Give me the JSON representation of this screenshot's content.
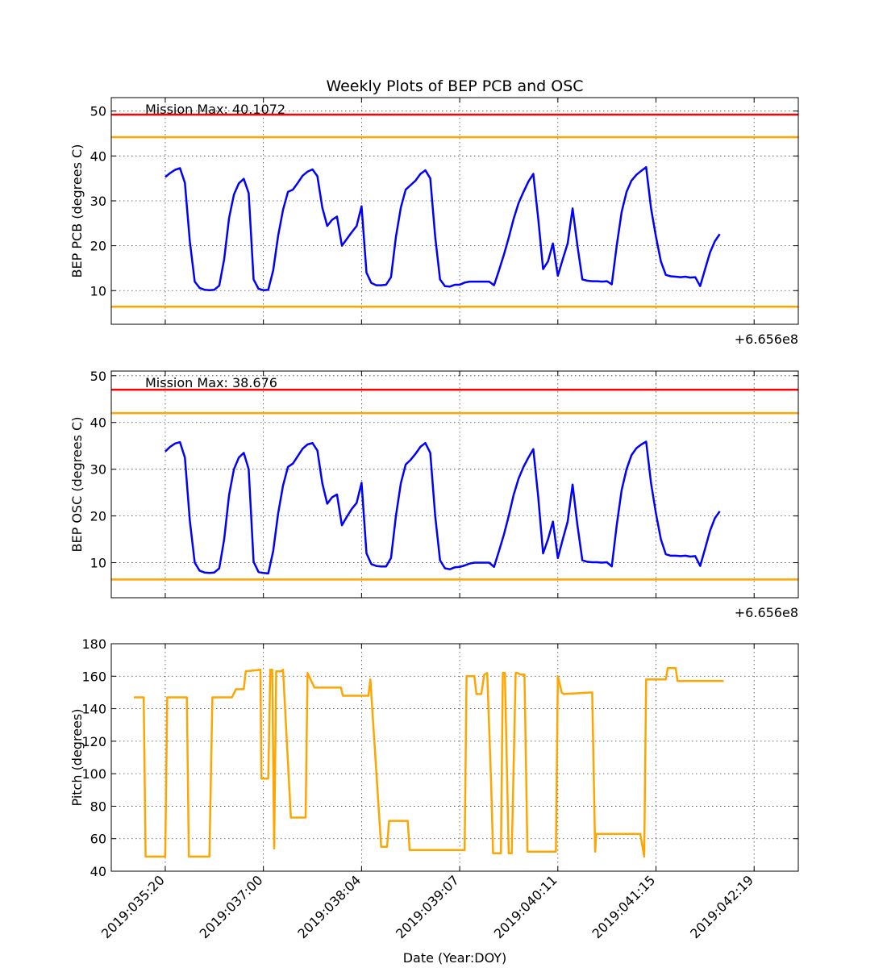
{
  "figure": {
    "title": "Weekly Plots of BEP PCB and OSC",
    "xlabel": "Date (Year:DOY)"
  },
  "colors": {
    "data": "#0000ff",
    "yellow_limit": "#ffa500",
    "red_limit": "#ff0000",
    "pitch": "#ffa500"
  },
  "chart_data": [
    {
      "type": "line",
      "ylabel": "BEP PCB (degrees C)",
      "x_offset_label": "+6.656e8",
      "annotation": "Mission Max: 40.1072",
      "xlim": [
        -0.55,
        6.45
      ],
      "ylim": [
        2.5,
        53
      ],
      "yticks": [
        10,
        20,
        30,
        40,
        50
      ],
      "xticks": [
        0,
        1,
        2,
        3,
        4,
        5,
        6
      ],
      "limits": [
        {
          "value": 49.2,
          "color": "red"
        },
        {
          "value": 44.2,
          "color": "yellow"
        },
        {
          "value": 6.4,
          "color": "yellow"
        }
      ],
      "series": [
        {
          "x": [
            0.0,
            0.05,
            0.1,
            0.15,
            0.2,
            0.25,
            0.3,
            0.35,
            0.4,
            0.45,
            0.5,
            0.55,
            0.6,
            0.65,
            0.7,
            0.75,
            0.8,
            0.85,
            0.9,
            0.95,
            1.0,
            1.05,
            1.1,
            1.15,
            1.2,
            1.25,
            1.3,
            1.35,
            1.4,
            1.45,
            1.5,
            1.55,
            1.6,
            1.65,
            1.7,
            1.75,
            1.8,
            1.85,
            1.9,
            1.95,
            2.0,
            2.05,
            2.1,
            2.15,
            2.2,
            2.25,
            2.3,
            2.35,
            2.4,
            2.45,
            2.5,
            2.55,
            2.6,
            2.65,
            2.7,
            2.75,
            2.8,
            2.85,
            2.9,
            2.95,
            3.0,
            3.05,
            3.1,
            3.15,
            3.2,
            3.25,
            3.3,
            3.35,
            3.4,
            3.45,
            3.5,
            3.55,
            3.6,
            3.65,
            3.7,
            3.75,
            3.8,
            3.85,
            3.9,
            3.95,
            4.0,
            4.05,
            4.1,
            4.15,
            4.2,
            4.25,
            4.3,
            4.35,
            4.4,
            4.45,
            4.5,
            4.55,
            4.6,
            4.65,
            4.7,
            4.75,
            4.8,
            4.85,
            4.9,
            4.95,
            5.0,
            5.05,
            5.1,
            5.15,
            5.2,
            5.25,
            5.3,
            5.35,
            5.4,
            5.45,
            5.5,
            5.55,
            5.6,
            5.65
          ],
          "y": [
            35.3,
            36.2,
            36.9,
            37.3,
            34.0,
            21.0,
            12.0,
            10.6,
            10.2,
            10.1,
            10.2,
            11.1,
            17.0,
            26.2,
            31.4,
            33.9,
            34.9,
            31.7,
            12.5,
            10.4,
            10.1,
            10.2,
            14.5,
            22.2,
            28.0,
            32.0,
            32.5,
            34.0,
            35.6,
            36.5,
            37.0,
            35.5,
            28.5,
            24.4,
            25.8,
            26.5,
            20.0,
            21.5,
            23.0,
            24.4,
            28.8,
            14.0,
            11.7,
            11.2,
            11.2,
            11.3,
            13.0,
            22.0,
            28.5,
            32.5,
            33.5,
            34.5,
            36.0,
            36.8,
            35.0,
            22.0,
            12.5,
            11.0,
            10.9,
            11.3,
            11.3,
            11.8,
            12.0,
            12.0,
            12.0,
            12.0,
            12.0,
            11.2,
            14.5,
            18.0,
            21.8,
            26.0,
            29.5,
            32.0,
            34.3,
            36.0,
            26.0,
            14.8,
            16.5,
            20.5,
            13.3,
            17.0,
            20.5,
            28.3,
            20.0,
            12.5,
            12.2,
            12.1,
            12.1,
            12.0,
            12.1,
            11.4,
            20.0,
            27.5,
            32.0,
            34.5,
            35.8,
            36.7,
            37.5,
            28.3,
            22.0,
            16.5,
            13.5,
            13.2,
            13.1,
            13.0,
            13.1,
            12.9,
            13.0,
            11.0,
            14.8,
            18.5,
            21.0,
            22.6
          ]
        }
      ]
    },
    {
      "type": "line",
      "ylabel": "BEP OSC (degrees C)",
      "x_offset_label": "+6.656e8",
      "annotation": "Mission Max: 38.676",
      "xlim": [
        -0.55,
        6.45
      ],
      "ylim": [
        2.5,
        51
      ],
      "yticks": [
        10,
        20,
        30,
        40,
        50
      ],
      "xticks": [
        0,
        1,
        2,
        3,
        4,
        5,
        6
      ],
      "limits": [
        {
          "value": 47.0,
          "color": "red"
        },
        {
          "value": 42.0,
          "color": "yellow"
        },
        {
          "value": 6.4,
          "color": "yellow"
        }
      ],
      "series": [
        {
          "x": [
            0.0,
            0.05,
            0.1,
            0.15,
            0.2,
            0.25,
            0.3,
            0.35,
            0.4,
            0.45,
            0.5,
            0.55,
            0.6,
            0.65,
            0.7,
            0.75,
            0.8,
            0.85,
            0.9,
            0.95,
            1.0,
            1.05,
            1.1,
            1.15,
            1.2,
            1.25,
            1.3,
            1.35,
            1.4,
            1.45,
            1.5,
            1.55,
            1.6,
            1.65,
            1.7,
            1.75,
            1.8,
            1.85,
            1.9,
            1.95,
            2.0,
            2.05,
            2.1,
            2.15,
            2.2,
            2.25,
            2.3,
            2.35,
            2.4,
            2.45,
            2.5,
            2.55,
            2.6,
            2.65,
            2.7,
            2.75,
            2.8,
            2.85,
            2.9,
            2.95,
            3.0,
            3.05,
            3.1,
            3.15,
            3.2,
            3.25,
            3.3,
            3.35,
            3.4,
            3.45,
            3.5,
            3.55,
            3.6,
            3.65,
            3.7,
            3.75,
            3.8,
            3.85,
            3.9,
            3.95,
            4.0,
            4.05,
            4.1,
            4.15,
            4.2,
            4.25,
            4.3,
            4.35,
            4.4,
            4.45,
            4.5,
            4.55,
            4.6,
            4.65,
            4.7,
            4.75,
            4.8,
            4.85,
            4.9,
            4.95,
            5.0,
            5.05,
            5.1,
            5.15,
            5.2,
            5.25,
            5.3,
            5.35,
            5.4,
            5.45,
            5.5,
            5.55,
            5.6,
            5.65
          ],
          "y": [
            33.8,
            34.8,
            35.5,
            35.8,
            32.5,
            19.0,
            10.0,
            8.3,
            7.9,
            7.8,
            7.9,
            8.8,
            15.0,
            24.5,
            30.0,
            32.5,
            33.5,
            30.0,
            10.2,
            8.0,
            7.8,
            7.7,
            12.5,
            20.5,
            26.5,
            30.5,
            31.2,
            32.8,
            34.4,
            35.3,
            35.6,
            34.0,
            27.0,
            22.6,
            24.0,
            24.6,
            18.0,
            19.8,
            21.5,
            22.8,
            27.1,
            12.0,
            9.7,
            9.3,
            9.2,
            9.2,
            11.0,
            20.0,
            27.0,
            31.0,
            32.0,
            33.3,
            34.8,
            35.6,
            33.5,
            20.0,
            10.5,
            8.8,
            8.6,
            9.0,
            9.1,
            9.4,
            9.8,
            10.0,
            10.0,
            10.0,
            10.0,
            9.1,
            12.5,
            16.0,
            20.0,
            24.5,
            28.0,
            30.5,
            32.5,
            34.3,
            24.0,
            12.0,
            15.0,
            18.8,
            11.0,
            15.0,
            18.8,
            26.7,
            18.0,
            10.5,
            10.2,
            10.1,
            10.1,
            10.0,
            10.1,
            9.2,
            18.0,
            25.5,
            30.0,
            33.0,
            34.5,
            35.3,
            35.9,
            27.0,
            20.5,
            15.0,
            11.8,
            11.5,
            11.5,
            11.4,
            11.5,
            11.3,
            11.4,
            9.3,
            13.0,
            16.8,
            19.5,
            21.0
          ]
        }
      ]
    },
    {
      "type": "line",
      "ylabel": "Pitch (degrees)",
      "xlabel": "Date (Year:DOY)",
      "xlim": [
        -0.55,
        6.45
      ],
      "ylim": [
        40,
        180
      ],
      "yticks": [
        40,
        60,
        80,
        100,
        120,
        140,
        160,
        180
      ],
      "xticks": [
        0,
        1,
        2,
        3,
        4,
        5,
        6
      ],
      "xtick_labels": [
        "2019:035:20",
        "2019:037:00",
        "2019:038:04",
        "2019:039:07",
        "2019:040:11",
        "2019:041:15",
        "2019:042:19"
      ],
      "series": [
        {
          "x": [
            -0.32,
            -0.22,
            -0.2,
            -0.18,
            0.0,
            0.02,
            0.22,
            0.24,
            0.45,
            0.48,
            0.68,
            0.72,
            0.8,
            0.82,
            0.97,
            0.98,
            1.05,
            1.07,
            1.09,
            1.11,
            1.13,
            1.16,
            1.18,
            1.2,
            1.28,
            1.29,
            1.31,
            1.35,
            1.43,
            1.45,
            1.52,
            1.54,
            1.79,
            1.81,
            1.83,
            1.86,
            2.07,
            2.09,
            2.2,
            2.22,
            2.26,
            2.28,
            2.47,
            2.49,
            3.05,
            3.07,
            3.15,
            3.17,
            3.2,
            3.22,
            3.25,
            3.28,
            3.32,
            3.34,
            3.42,
            3.44,
            3.46,
            3.5,
            3.53,
            3.57,
            3.59,
            3.62,
            3.66,
            3.69,
            3.81,
            3.83,
            3.86,
            3.88,
            3.98,
            4.0,
            4.04,
            4.06,
            4.35,
            4.38,
            4.39,
            4.42,
            4.81,
            4.84,
            4.88,
            4.9,
            5.1,
            5.12,
            5.2,
            5.22,
            5.34,
            5.36,
            5.69
          ],
          "y": [
            147,
            147,
            49,
            49,
            49,
            147,
            147,
            49,
            49,
            147,
            147,
            152,
            152,
            163,
            164,
            97,
            97,
            164,
            164,
            54,
            163,
            163,
            163,
            164,
            73,
            73,
            73,
            73,
            73,
            162,
            153,
            153,
            153,
            148,
            148,
            148,
            148,
            158,
            55,
            55,
            55,
            71,
            71,
            53,
            53,
            160,
            160,
            149,
            149,
            149,
            161,
            162,
            95,
            51,
            51,
            162,
            162,
            51,
            51,
            162,
            162,
            161,
            161,
            52,
            52,
            52,
            52,
            52,
            52,
            160,
            150,
            149,
            150,
            52,
            63,
            63,
            63,
            63,
            49,
            158,
            158,
            165,
            165,
            157,
            157,
            157,
            157
          ]
        }
      ]
    }
  ]
}
